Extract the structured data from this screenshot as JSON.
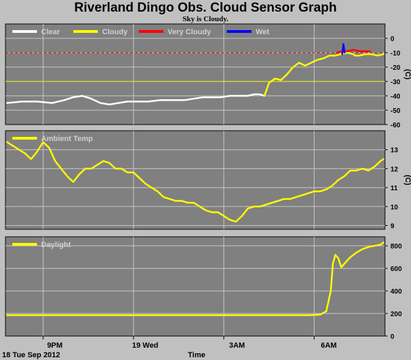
{
  "title": "Riverland Dingo Obs. Cloud Sensor Graph",
  "subtitle": "Sky is Cloudy.",
  "colors": {
    "background": "#c0c0c0",
    "plot_bg": "#808080",
    "grid": "#c8c8c8",
    "clear": "#ffffff",
    "cloudy": "#ffff00",
    "very_cloudy": "#ff0000",
    "wet": "#0000ff",
    "ambient": "#ffff00",
    "daylight": "#ffff00"
  },
  "chart_data": [
    {
      "type": "line",
      "ylabel": "(C)",
      "ylim": [
        -60,
        10
      ],
      "yticks": [
        0,
        -10,
        -20,
        -30,
        -40,
        -50,
        -60
      ],
      "xlim": [
        19.75,
        32.35
      ],
      "x_unit": "hours since 00:00 on 18 Tue Sep 2012",
      "grid": true,
      "threshold_lines": [
        {
          "value": -10,
          "color": "#ff0000",
          "style": "dashed"
        },
        {
          "value": -30,
          "color": "#ffff00",
          "style": "solid"
        }
      ],
      "legend": [
        "Clear",
        "Cloudy",
        "Very Cloudy",
        "Wet"
      ],
      "legend_colors": [
        "#ffffff",
        "#ffff00",
        "#ff0000",
        "#0000ff"
      ],
      "series": [
        {
          "name": "Clear",
          "color": "#ffffff",
          "x": [
            19.8,
            20.3,
            20.8,
            21.3,
            21.7,
            22.0,
            22.3,
            22.6,
            22.9,
            23.2,
            23.5,
            23.8,
            24.1,
            24.5,
            24.9,
            25.3,
            25.7,
            26.0,
            26.3,
            26.6,
            26.9,
            27.2,
            27.5,
            27.8,
            28.0,
            28.2,
            28.35
          ],
          "y": [
            -45,
            -44,
            -44,
            -45,
            -43,
            -41,
            -40,
            -42,
            -45,
            -46,
            -45,
            -44,
            -44,
            -44,
            -43,
            -43,
            -43,
            -42,
            -41,
            -41,
            -41,
            -40,
            -40,
            -40,
            -39,
            -39,
            -40
          ]
        },
        {
          "name": "Cloudy",
          "color": "#ffff00",
          "x": [
            28.35,
            28.5,
            28.7,
            28.9,
            29.1,
            29.3,
            29.5,
            29.7,
            29.9,
            30.1,
            30.3,
            30.5,
            30.7,
            30.9,
            31.1,
            31.3,
            31.35,
            31.5,
            31.7,
            31.9,
            32.1,
            32.3
          ],
          "y": [
            -40,
            -31,
            -28,
            -29,
            -25,
            -20,
            -17,
            -19,
            -17,
            -15,
            -14,
            -12,
            -12,
            -11,
            -10,
            -11,
            -12,
            -12,
            -11,
            -11,
            -12,
            -11
          ]
        },
        {
          "name": "Very Cloudy",
          "color": "#ff0000",
          "x": [
            30.75,
            30.9,
            31.1,
            31.3,
            31.5,
            31.7,
            31.85
          ],
          "y": [
            -10,
            -9,
            -9,
            -8,
            -9,
            -9,
            -9
          ]
        },
        {
          "name": "Wet",
          "color": "#0000ff",
          "x": [
            30.93,
            30.95,
            30.97,
            30.99,
            31.01
          ],
          "y": [
            -11,
            -8,
            -4,
            -7,
            -10
          ]
        }
      ]
    },
    {
      "type": "line",
      "ylabel": "(C)",
      "ylim": [
        8.8,
        14
      ],
      "yticks": [
        9,
        10,
        11,
        12,
        13
      ],
      "xlim": [
        19.75,
        32.35
      ],
      "grid": true,
      "legend": [
        "Ambient Temp"
      ],
      "legend_colors": [
        "#ffff00"
      ],
      "series": [
        {
          "name": "Ambient Temp",
          "color": "#ffff00",
          "x": [
            19.8,
            20.0,
            20.2,
            20.4,
            20.6,
            20.8,
            21.0,
            21.2,
            21.4,
            21.6,
            21.8,
            22.0,
            22.2,
            22.4,
            22.6,
            22.8,
            23.0,
            23.2,
            23.4,
            23.6,
            23.8,
            24.0,
            24.2,
            24.4,
            24.6,
            24.8,
            25.0,
            25.2,
            25.4,
            25.6,
            25.8,
            26.0,
            26.2,
            26.4,
            26.6,
            26.8,
            27.0,
            27.2,
            27.4,
            27.6,
            27.8,
            28.0,
            28.2,
            28.4,
            28.6,
            28.8,
            29.0,
            29.2,
            29.4,
            29.6,
            29.8,
            30.0,
            30.2,
            30.4,
            30.6,
            30.8,
            31.0,
            31.2,
            31.4,
            31.6,
            31.8,
            32.0,
            32.2,
            32.3
          ],
          "y": [
            13.4,
            13.2,
            13.0,
            12.8,
            12.5,
            12.9,
            13.4,
            13.1,
            12.4,
            12.0,
            11.6,
            11.3,
            11.7,
            12.0,
            12.0,
            12.2,
            12.4,
            12.3,
            12.0,
            12.0,
            11.8,
            11.8,
            11.5,
            11.2,
            11.0,
            10.8,
            10.5,
            10.4,
            10.3,
            10.3,
            10.2,
            10.2,
            10.0,
            9.8,
            9.7,
            9.7,
            9.5,
            9.3,
            9.2,
            9.5,
            9.9,
            10.0,
            10.0,
            10.1,
            10.2,
            10.3,
            10.4,
            10.4,
            10.5,
            10.6,
            10.7,
            10.8,
            10.8,
            10.9,
            11.1,
            11.4,
            11.6,
            11.9,
            11.9,
            12.0,
            11.9,
            12.1,
            12.4,
            12.5
          ]
        }
      ]
    },
    {
      "type": "line",
      "ylabel": "",
      "ylim": [
        0,
        880
      ],
      "yticks": [
        0,
        200,
        400,
        600,
        800
      ],
      "xlim": [
        19.75,
        32.35
      ],
      "grid": true,
      "legend": [
        "Daylight"
      ],
      "legend_colors": [
        "#ffff00"
      ],
      "series": [
        {
          "name": "Daylight",
          "color": "#ffff00",
          "x": [
            19.8,
            21.0,
            22.0,
            23.0,
            24.0,
            25.0,
            26.0,
            27.0,
            28.0,
            29.0,
            29.8,
            30.2,
            30.4,
            30.55,
            30.62,
            30.7,
            30.8,
            30.9,
            31.0,
            31.2,
            31.4,
            31.6,
            31.8,
            32.0,
            32.2,
            32.3
          ],
          "y": [
            185,
            185,
            185,
            185,
            185,
            185,
            185,
            185,
            185,
            185,
            185,
            190,
            220,
            400,
            640,
            720,
            690,
            610,
            640,
            700,
            740,
            770,
            790,
            800,
            810,
            830
          ]
        }
      ]
    }
  ],
  "x_axis": {
    "ticks": [
      {
        "label": "9PM",
        "hour": 21
      },
      {
        "label": "19 Wed",
        "hour": 24
      },
      {
        "label": "3AM",
        "hour": 27
      },
      {
        "label": "6AM",
        "hour": 30
      }
    ],
    "start_label": "18 Tue Sep 2012",
    "xlabel": "Time"
  }
}
